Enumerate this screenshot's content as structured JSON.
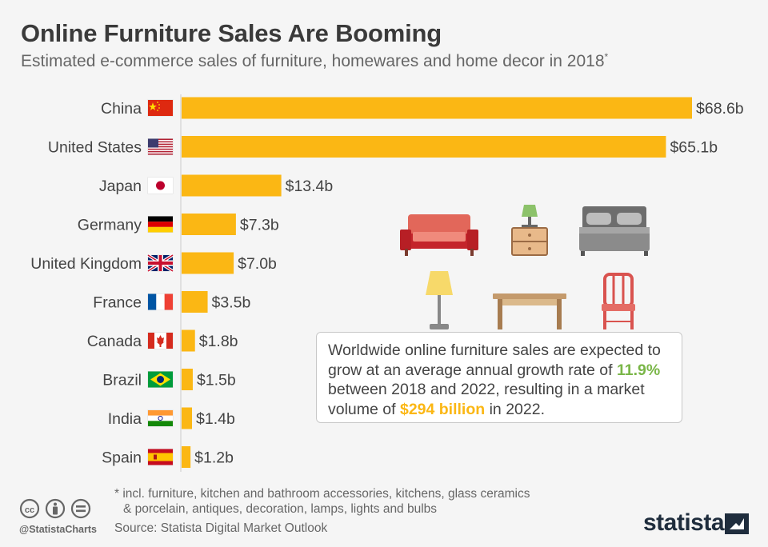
{
  "header": {
    "title": "Online Furniture Sales Are Booming",
    "subtitle": "Estimated e-commerce sales of furniture, homewares and home decor in 2018",
    "subtitle_mark": "*"
  },
  "chart_data": {
    "type": "bar",
    "orientation": "horizontal",
    "categories": [
      "China",
      "United States",
      "Japan",
      "Germany",
      "United Kingdom",
      "France",
      "Canada",
      "Brazil",
      "India",
      "Spain"
    ],
    "values": [
      68.6,
      65.1,
      13.4,
      7.3,
      7.0,
      3.5,
      1.8,
      1.5,
      1.4,
      1.2
    ],
    "data_labels": [
      "$68.6b",
      "$65.1b",
      "$13.4b",
      "$7.3b",
      "$7.0b",
      "$3.5b",
      "$1.8b",
      "$1.5b",
      "$1.4b",
      "$1.2b"
    ],
    "title": "Online Furniture Sales Are Booming",
    "xlim": [
      0,
      68.6
    ],
    "grid": false,
    "legend": "none",
    "bar_color": "#fbb714",
    "flags": [
      "china-flag-icon",
      "usa-flag-icon",
      "japan-flag-icon",
      "germany-flag-icon",
      "uk-flag-icon",
      "france-flag-icon",
      "canada-flag-icon",
      "brazil-flag-icon",
      "india-flag-icon",
      "spain-flag-icon"
    ]
  },
  "callout": {
    "text_before": "Worldwide online furniture sales are expected to grow at an average annual growth rate of",
    "growth_rate": "11.9%",
    "text_middle": "between 2018 and 2022, resulting in a market volume of",
    "market_volume": "$294 billion",
    "text_after": "in 2022."
  },
  "illustrations": [
    "sofa-icon",
    "nightstand-icon",
    "bed-icon",
    "floor-lamp-icon",
    "table-icon",
    "chair-icon"
  ],
  "footer": {
    "footnote_line1": "* incl. furniture, kitchen and bathroom accessories, kitchens, glass ceramics",
    "footnote_line2": "& porcelain, antiques, decoration, lamps, lights and bulbs",
    "source": "Source: Statista Digital Market Outlook",
    "handle": "@StatistaCharts",
    "brand": "statista",
    "license_icons": [
      "cc-icon",
      "by-icon",
      "nd-icon"
    ]
  },
  "colors": {
    "bar": "#fbb714",
    "green_highlight": "#7ab648",
    "orange_highlight": "#fbb714"
  }
}
